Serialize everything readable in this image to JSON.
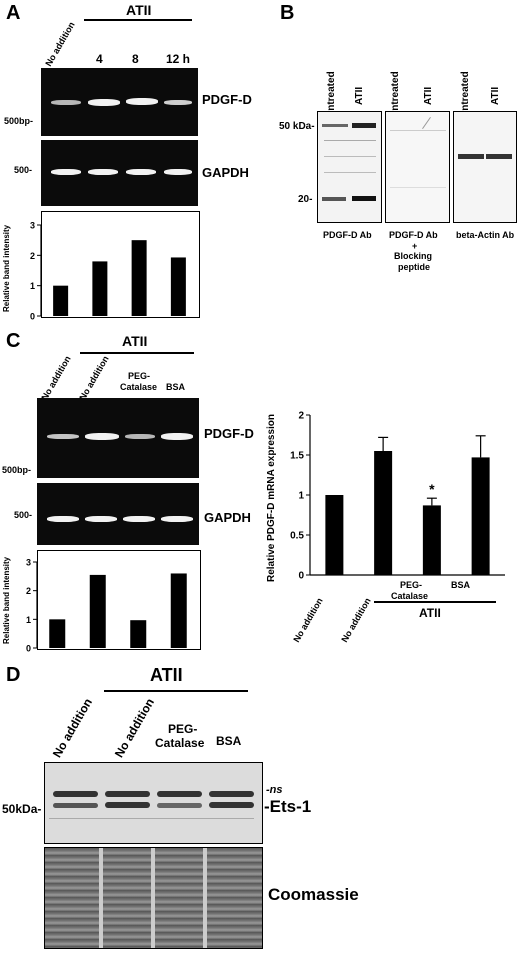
{
  "panelA": {
    "letter": "A",
    "treatment": "ATII",
    "lanes": [
      "No addition",
      "4",
      "8",
      "12 h"
    ],
    "gel1_label": "PDGF-D",
    "gel1_marker": "500bp-",
    "gel2_label": "GAPDH",
    "gel2_marker": "500-",
    "ylabel": "Relative band intensity"
  },
  "panelB": {
    "letter": "B",
    "lanes": [
      "Untreated",
      "ATII",
      "Untreated",
      "ATII",
      "Untreated",
      "ATII"
    ],
    "marker_50": "50 kDa-",
    "marker_20": "20-",
    "blot1_label": "PDGF-D Ab",
    "blot2_label_1": "PDGF-D Ab",
    "blot2_label_2": "+",
    "blot2_label_3": "Blocking",
    "blot2_label_4": "peptide",
    "blot3_label": "beta-Actin Ab"
  },
  "panelC": {
    "letter": "C",
    "treatment": "ATII",
    "lanes": [
      "No addition",
      "No addition",
      "PEG-",
      "Catalase",
      "BSA"
    ],
    "gel1_label": "PDGF-D",
    "gel1_marker": "500bp-",
    "gel2_label": "GAPDH",
    "gel2_marker": "500-",
    "ylabel_small": "Relative band intensity",
    "ylabel_right": "Relative PDGF-D mRNA expression",
    "right_cats": [
      "No addition",
      "No addition",
      "PEG-",
      "Catalase",
      "BSA"
    ],
    "right_treatment": "ATII",
    "asterisk": "*"
  },
  "panelD": {
    "letter": "D",
    "treatment": "ATII",
    "lanes": [
      "No addition",
      "No addition",
      "PEG-",
      "Catalase",
      "BSA"
    ],
    "marker": "50kDa-",
    "ns_label": "-ns",
    "ets_label": "-Ets-1",
    "coomassie_label": "Coomassie"
  },
  "chart_data": [
    {
      "type": "bar",
      "categories": [
        "No addition",
        "4",
        "8",
        "12 h"
      ],
      "values": [
        1.0,
        1.8,
        2.5,
        1.93
      ],
      "title": "",
      "xlabel": "",
      "ylabel": "Relative band intensity",
      "yticks": [
        "0",
        "1",
        "2",
        "3"
      ],
      "ylim": [
        0,
        3
      ]
    },
    {
      "type": "bar",
      "categories": [
        "No addition",
        "No addition",
        "PEG-Catalase",
        "BSA"
      ],
      "values": [
        1.0,
        2.55,
        0.97,
        2.6
      ],
      "title": "",
      "xlabel": "",
      "ylabel": "Relative band intensity",
      "yticks": [
        "0",
        "1",
        "2",
        "3"
      ],
      "ylim": [
        0,
        3
      ]
    },
    {
      "type": "bar",
      "categories": [
        "No addition",
        "No addition",
        "PEG-Catalase",
        "BSA"
      ],
      "values": [
        1.0,
        1.55,
        0.87,
        1.47
      ],
      "errors": [
        0,
        0.17,
        0.09,
        0.27
      ],
      "title": "",
      "xlabel": "",
      "ylabel": "Relative PDGF-D mRNA expression",
      "yticks": [
        "0",
        "0.5",
        "1",
        "1.5",
        "2"
      ],
      "ylim": [
        0,
        2
      ]
    }
  ]
}
